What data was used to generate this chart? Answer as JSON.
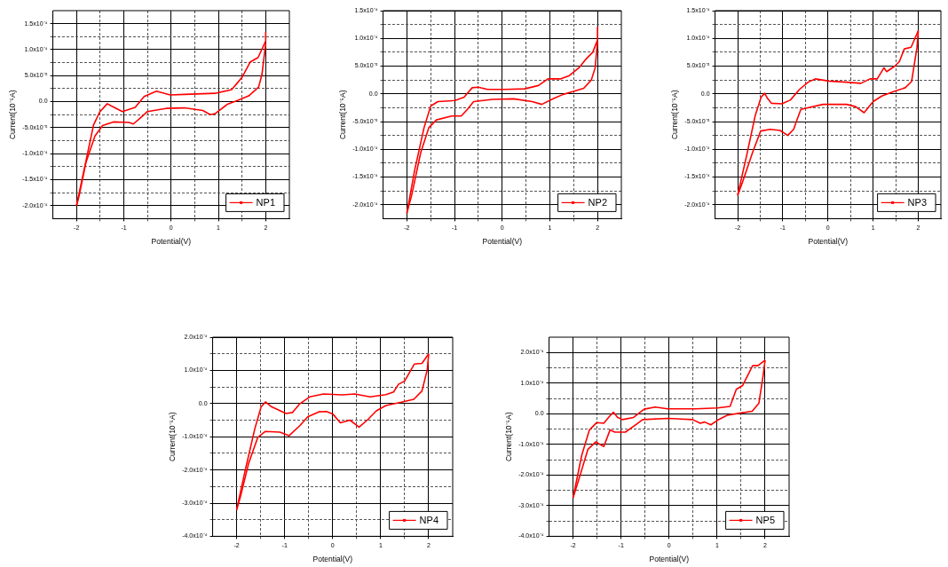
{
  "chart_data": [
    {
      "type": "line",
      "xlabel": "Potential(V)",
      "ylabel": "Current(10⁻⁵A)",
      "xlim": [
        -2.5,
        2.5
      ],
      "xticks": [
        -2,
        {
          "value": -1.5,
          "label": null
        },
        -1,
        {
          "value": -0.5,
          "label": null
        },
        0,
        {
          "value": 0.5,
          "label": null
        },
        1,
        {
          "value": 1.5,
          "label": null
        },
        2
      ],
      "ylim": [
        -0.000225,
        0.000175
      ],
      "yticks": [
        {
          "value": -0.0002,
          "label": "-2.0x10⁻⁴"
        },
        {
          "value": -0.000175,
          "label": null
        },
        {
          "value": -0.00015,
          "label": "-1.5x10⁻⁴"
        },
        {
          "value": -0.000125,
          "label": null
        },
        {
          "value": -0.0001,
          "label": "-1.0x10⁻⁴"
        },
        {
          "value": -7.5e-05,
          "label": null
        },
        {
          "value": -5e-05,
          "label": "-5.0x10⁻⁵"
        },
        {
          "value": -2.5e-05,
          "label": null
        },
        {
          "value": 0,
          "label": "0.0"
        },
        {
          "value": 2.5e-05,
          "label": null
        },
        {
          "value": 5e-05,
          "label": "5.0x10⁻⁵"
        },
        {
          "value": 7.5e-05,
          "label": null
        },
        {
          "value": 0.0001,
          "label": "1.0x10⁻⁴"
        },
        {
          "value": 0.000125,
          "label": null
        },
        {
          "value": 0.00015,
          "label": "1.5x10⁻⁴"
        }
      ],
      "grid": true,
      "legend": "bottom right",
      "series": [
        {
          "name": "NP1",
          "color": "#ff0000",
          "x": [
            -2,
            -1.64,
            -1.51,
            -1.35,
            -1.27,
            -1.03,
            -0.76,
            -0.57,
            -0.31,
            -0.02,
            0.28,
            0.93,
            1.28,
            1.41,
            1.5,
            1.67,
            1.84,
            2,
            2
          ],
          "values": [
            -0.0002,
            -4.5e-05,
            -2e-05,
            -4e-06,
            -8e-06,
            -1.9e-05,
            -1.1e-05,
            1e-05,
            2e-05,
            1.3e-05,
            1.4e-05,
            1.6e-05,
            2.3e-05,
            3.7e-05,
            4.7e-05,
            7.6e-05,
            8.5e-05,
            0.000117,
            0.000134
          ]
        },
        {
          "color": "#ff0000",
          "x": [
            -2,
            -1.95,
            -1.8,
            -1.61,
            -1.45,
            -1.22,
            -0.89,
            -0.8,
            -0.67,
            -0.5,
            -0.11,
            0.28,
            0.67,
            0.83,
            0.93,
            1.19,
            1.45,
            1.64,
            1.85,
            1.92,
            2
          ],
          "values": [
            -0.0002,
            -0.000183,
            -0.000117,
            -6.6e-05,
            -4.6e-05,
            -3.9e-05,
            -4e-05,
            -4.3e-05,
            -3.3e-05,
            -1.9e-05,
            -1.3e-05,
            -1.2e-05,
            -1.7e-05,
            -2.5e-05,
            -2.3e-05,
            -5e-06,
            4e-06,
            1.1e-05,
            2.8e-05,
            5.2e-05,
            0.000112
          ]
        }
      ]
    },
    {
      "type": "line",
      "xlabel": "Potential(V)",
      "ylabel": "Current(10⁻⁵A)",
      "xlim": [
        -2.5,
        2.5
      ],
      "xticks": [
        -2,
        {
          "value": -1.5,
          "label": null
        },
        -1,
        {
          "value": -0.5,
          "label": null
        },
        0,
        {
          "value": 0.5,
          "label": null
        },
        1,
        {
          "value": 1.5,
          "label": null
        },
        2
      ],
      "ylim": [
        -0.000225,
        0.00015
      ],
      "yticks": [
        {
          "value": -0.0002,
          "label": "-2.0x10⁻⁴"
        },
        {
          "value": -0.000175,
          "label": null
        },
        {
          "value": -0.00015,
          "label": "-1.5x10⁻⁴"
        },
        {
          "value": -0.000125,
          "label": null
        },
        {
          "value": -0.0001,
          "label": "-1.0x10⁻⁴"
        },
        {
          "value": -7.5e-05,
          "label": null
        },
        {
          "value": -5e-05,
          "label": "-5.0x10⁻⁵"
        },
        {
          "value": -2.5e-05,
          "label": null
        },
        {
          "value": 0,
          "label": "0.0"
        },
        {
          "value": 2.5e-05,
          "label": null
        },
        {
          "value": 5e-05,
          "label": "5.0x10⁻⁵"
        },
        {
          "value": 7.5e-05,
          "label": null
        },
        {
          "value": 0.0001,
          "label": "1.0x10⁻⁴"
        },
        {
          "value": 0.000125,
          "label": null
        },
        {
          "value": 0.00015,
          "label": "1.5x10⁻⁴"
        }
      ],
      "grid": true,
      "legend": "bottom right",
      "series": [
        {
          "name": "NP2",
          "color": "#ff0000",
          "x": [
            -2,
            -1.84,
            -1.64,
            -1.5,
            -1.35,
            -0.99,
            -0.8,
            -0.63,
            -0.5,
            -0.31,
            0.05,
            0.47,
            0.76,
            0.96,
            1.22,
            1.41,
            1.61,
            1.74,
            1.9,
            2,
            2
          ],
          "values": [
            -0.000215,
            -0.000139,
            -6.1e-05,
            -2.2e-05,
            -1.4e-05,
            -1.2e-05,
            -6e-06,
            1.1e-05,
            1.2e-05,
            8e-06,
            8e-06,
            9e-06,
            1.5e-05,
            2.7e-05,
            2.7e-05,
            3.3e-05,
            4.7e-05,
            6.1e-05,
            7.5e-05,
            9.7e-05,
            0.000121
          ]
        },
        {
          "color": "#ff0000",
          "x": [
            -2,
            -1.9,
            -1.71,
            -1.54,
            -1.38,
            -1.06,
            -0.86,
            -0.73,
            -0.6,
            -0.21,
            0.24,
            0.63,
            0.83,
            1.09,
            1.28,
            1.48,
            1.71,
            1.87,
            1.95,
            2
          ],
          "values": [
            -0.000215,
            -0.000183,
            -0.000106,
            -6.1e-05,
            -4.7e-05,
            -4e-05,
            -4e-05,
            -2.8e-05,
            -1.4e-05,
            -1e-05,
            -9e-06,
            -1.4e-05,
            -1.9e-05,
            -8e-06,
            -1e-06,
            4e-06,
            1e-05,
            2.5e-05,
            4.7e-05,
            9.4e-05
          ]
        }
      ]
    },
    {
      "type": "line",
      "xlabel": "Potential(V)",
      "ylabel": "Current(10⁻⁵A)",
      "xlim": [
        -2.5,
        2.5
      ],
      "xticks": [
        -2,
        {
          "value": -1.5,
          "label": null
        },
        -1,
        {
          "value": -0.5,
          "label": null
        },
        0,
        {
          "value": 0.5,
          "label": null
        },
        1,
        {
          "value": 1.5,
          "label": null
        },
        2
      ],
      "ylim": [
        -0.000225,
        0.00015
      ],
      "yticks": [
        {
          "value": -0.0002,
          "label": "-2.0x10⁻⁴"
        },
        {
          "value": -0.000175,
          "label": null
        },
        {
          "value": -0.00015,
          "label": "-1.5x10⁻⁴"
        },
        {
          "value": -0.000125,
          "label": null
        },
        {
          "value": -0.0001,
          "label": "-1.0x10⁻⁴"
        },
        {
          "value": -7.5e-05,
          "label": null
        },
        {
          "value": -5e-05,
          "label": "-5.0x10⁻⁵"
        },
        {
          "value": -2.5e-05,
          "label": null
        },
        {
          "value": 0,
          "label": "0.0"
        },
        {
          "value": 2.5e-05,
          "label": null
        },
        {
          "value": 5e-05,
          "label": "5.0x10⁻⁵"
        },
        {
          "value": 7.5e-05,
          "label": null
        },
        {
          "value": 0.0001,
          "label": "1.0x10⁻⁴"
        },
        {
          "value": 0.000125,
          "label": null
        },
        {
          "value": 0.00015,
          "label": "1.5x10⁻⁴"
        }
      ],
      "grid": true,
      "legend": "bottom right",
      "series": [
        {
          "name": "NP3",
          "color": "#ff0000",
          "x": [
            -2,
            -1.8,
            -1.61,
            -1.48,
            -1.4,
            -1.34,
            -1.25,
            -1.02,
            -0.83,
            -0.63,
            -0.44,
            -0.28,
            0.02,
            0.41,
            0.73,
            0.93,
            1.09,
            1.24,
            1.3,
            1.48,
            1.58,
            1.69,
            1.84,
            2
          ],
          "values": [
            -0.000183,
            -0.000111,
            -3.9e-05,
            -6e-06,
            1e-06,
            -8e-06,
            -1.7e-05,
            -1.8e-05,
            -1.1e-05,
            8e-06,
            2.1e-05,
            2.7e-05,
            2.3e-05,
            2.1e-05,
            1.9e-05,
            2.7e-05,
            2.7e-05,
            4.7e-05,
            4e-05,
            5e-05,
            5.8e-05,
            8.1e-05,
            8.4e-05,
            0.000114
          ]
        },
        {
          "color": "#ff0000",
          "x": [
            -2,
            -1.9,
            -1.67,
            -1.49,
            -1.28,
            -1.06,
            -0.89,
            -0.76,
            -0.7,
            -0.6,
            -0.11,
            0.41,
            0.61,
            0.8,
            1,
            1.19,
            1.45,
            1.71,
            1.85,
            1.97,
            2
          ],
          "values": [
            -0.000183,
            -0.000161,
            -0.000106,
            -6.7e-05,
            -6.4e-05,
            -6.6e-05,
            -7.5e-05,
            -6.4e-05,
            -5e-05,
            -2.8e-05,
            -1.9e-05,
            -1.9e-05,
            -2.3e-05,
            -3.4e-05,
            -1.4e-05,
            -4e-06,
            4e-06,
            1.1e-05,
            2.2e-05,
            8.3e-05,
            0.000114
          ]
        }
      ]
    },
    {
      "type": "line",
      "xlabel": "Potential(V)",
      "ylabel": "Current(10⁻⁵A)",
      "xlim": [
        -2.5,
        2.5
      ],
      "xticks": [
        -2,
        {
          "value": -1.5,
          "label": null
        },
        -1,
        {
          "value": -0.5,
          "label": null
        },
        0,
        {
          "value": 0.5,
          "label": null
        },
        1,
        {
          "value": 1.5,
          "label": null
        },
        2
      ],
      "ylim": [
        -0.0004,
        0.0002
      ],
      "yticks": [
        {
          "value": -0.0004,
          "label": "-4.0x10⁻⁴"
        },
        {
          "value": -0.00035,
          "label": null
        },
        {
          "value": -0.0003,
          "label": "-3.0x10⁻⁴"
        },
        {
          "value": -0.00025,
          "label": null
        },
        {
          "value": -0.0002,
          "label": "-2.0x10⁻⁴"
        },
        {
          "value": -0.00015,
          "label": null
        },
        {
          "value": -0.0001,
          "label": "-1.0x10⁻⁴"
        },
        {
          "value": -5e-05,
          "label": null
        },
        {
          "value": 0,
          "label": "0.0"
        },
        {
          "value": 5e-05,
          "label": null
        },
        {
          "value": 0.0001,
          "label": "1.0x10⁻⁴"
        },
        {
          "value": 0.00015,
          "label": null
        },
        {
          "value": 0.0002,
          "label": "2.0x10⁻⁴"
        }
      ],
      "grid": true,
      "legend": "bottom right",
      "series": [
        {
          "name": "NP4",
          "color": "#ff0000",
          "x": [
            -2,
            -1.82,
            -1.62,
            -1.49,
            -1.4,
            -1.27,
            -0.97,
            -0.84,
            -0.68,
            -0.48,
            -0.19,
            0.2,
            0.46,
            0.78,
            1.11,
            1.27,
            1.37,
            1.5,
            1.7,
            1.86,
            2
          ],
          "values": [
            -0.00032,
            -0.0002,
            -7.5e-05,
            -1e-05,
            5e-06,
            -1e-05,
            -3e-05,
            -2.7e-05,
            0,
            2e-05,
            2.9e-05,
            2.6e-05,
            2.9e-05,
            2e-05,
            2.7e-05,
            3.5e-05,
            5.8e-05,
            6.8e-05,
            0.000119,
            0.000121,
            0.00015
          ]
        },
        {
          "color": "#ff0000",
          "x": [
            -2,
            -1.92,
            -1.75,
            -1.56,
            -1.4,
            -1.1,
            -0.91,
            -0.68,
            -0.52,
            -0.29,
            -0.13,
            0,
            0.16,
            0.36,
            0.55,
            0.72,
            0.91,
            1.11,
            1.43,
            1.69,
            1.86,
            1.97,
            2
          ],
          "values": [
            -0.00032,
            -0.00028,
            -0.00018,
            -0.000102,
            -8.4e-05,
            -8.6e-05,
            -9.7e-05,
            -6.6e-05,
            -4e-05,
            -2.5e-05,
            -2.4e-05,
            -3.1e-05,
            -5.8e-05,
            -5e-05,
            -7.1e-05,
            -5e-05,
            -2.2e-05,
            -6e-06,
            4e-06,
            1.3e-05,
            3.8e-05,
            0.000102,
            0.00015
          ]
        }
      ]
    },
    {
      "type": "line",
      "xlabel": "Potential(V)",
      "ylabel": "Current(10⁻⁵A)",
      "xlim": [
        -2.5,
        2.5
      ],
      "xticks": [
        -2,
        {
          "value": -1.5,
          "label": null
        },
        -1,
        {
          "value": -0.5,
          "label": null
        },
        0,
        {
          "value": 0.5,
          "label": null
        },
        1,
        {
          "value": 1.5,
          "label": null
        },
        2
      ],
      "ylim": [
        -0.0004,
        0.00025
      ],
      "yticks": [
        {
          "value": -0.0004,
          "label": "-4.0x10⁻⁴"
        },
        {
          "value": -0.00035,
          "label": null
        },
        {
          "value": -0.0003,
          "label": "-3.0x10⁻⁴"
        },
        {
          "value": -0.00025,
          "label": null
        },
        {
          "value": -0.0002,
          "label": "-2.0x10⁻⁴"
        },
        {
          "value": -0.00015,
          "label": null
        },
        {
          "value": -0.0001,
          "label": "-1.0x10⁻⁴"
        },
        {
          "value": -5e-05,
          "label": null
        },
        {
          "value": 0,
          "label": "0.0"
        },
        {
          "value": 5e-05,
          "label": null
        },
        {
          "value": 0.0001,
          "label": "1.0x10⁻⁴"
        },
        {
          "value": 0.00015,
          "label": null
        },
        {
          "value": 0.0002,
          "label": "2.0x10⁻⁴"
        }
      ],
      "grid": true,
      "legend": "bottom right",
      "series": [
        {
          "name": "NP5",
          "color": "#ff0000",
          "x": [
            -2,
            -1.82,
            -1.66,
            -1.51,
            -1.36,
            -1.25,
            -1.16,
            -1.07,
            -0.97,
            -0.74,
            -0.52,
            -0.29,
            -0.03,
            0.56,
            1.01,
            1.27,
            1.4,
            1.53,
            1.74,
            1.85,
            2
          ],
          "values": [
            -0.000274,
            -0.000136,
            -5.3e-05,
            -2.9e-05,
            -3.1e-05,
            -1e-05,
            5e-06,
            -1.2e-05,
            -1.9e-05,
            -1.2e-05,
            1.5e-05,
            2.2e-05,
            1.6e-05,
            1.6e-05,
            1.9e-05,
            2.4e-05,
            8e-05,
            9.2e-05,
            0.000157,
            0.000157,
            0.000175
          ]
        },
        {
          "color": "#ff0000",
          "x": [
            -2,
            -1.86,
            -1.69,
            -1.53,
            -1.36,
            -1.23,
            -1.13,
            -0.91,
            -0.68,
            -0.55,
            -0.03,
            0.49,
            0.65,
            0.74,
            0.87,
            1.01,
            1.21,
            1.47,
            1.73,
            1.87,
            1.96,
            2
          ],
          "values": [
            -0.000274,
            -0.000204,
            -0.000116,
            -9.2e-05,
            -0.000107,
            -5.3e-05,
            -6e-05,
            -6e-05,
            -3.4e-05,
            -1.9e-05,
            -1.5e-05,
            -1.9e-05,
            -3.1e-05,
            -2.7e-05,
            -3.6e-05,
            -2.1e-05,
            -5e-06,
            2e-06,
            8e-06,
            3.4e-05,
            0.000126,
            0.000175
          ]
        }
      ]
    }
  ]
}
